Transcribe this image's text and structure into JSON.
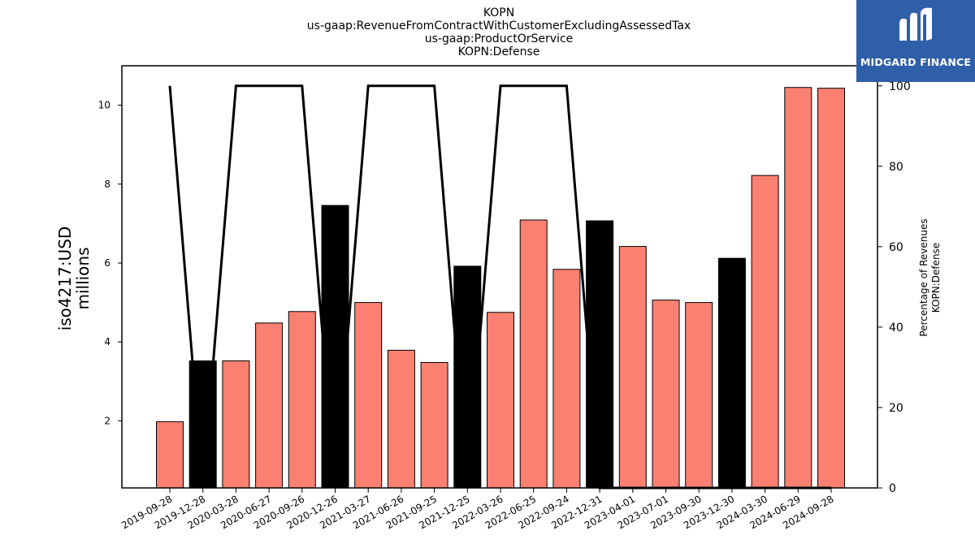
{
  "chart_data": {
    "type": "bar",
    "title_lines": [
      "KOPN",
      "us-gaap:RevenueFromContractWithCustomerExcludingAssessedTax",
      "us-gaap:ProductOrService",
      "KOPN:Defense"
    ],
    "ylabel_lines": [
      "iso4217:USD",
      "millions"
    ],
    "y2label_lines": [
      "Percentage of Revenues",
      "KOPN:Defense"
    ],
    "categories": [
      "2019-09-28",
      "2019-12-28",
      "2020-03-28",
      "2020-06-27",
      "2020-09-26",
      "2020-12-26",
      "2021-03-27",
      "2021-06-26",
      "2021-09-25",
      "2021-12-25",
      "2022-03-26",
      "2022-06-25",
      "2022-09-24",
      "2022-12-31",
      "2023-04-01",
      "2023-07-01",
      "2023-09-30",
      "2023-12-30",
      "2024-03-30",
      "2024-06-29",
      "2024-09-28"
    ],
    "values": [
      1.98,
      3.52,
      3.52,
      4.48,
      4.77,
      7.46,
      5.0,
      3.79,
      3.48,
      5.92,
      4.75,
      7.09,
      5.84,
      7.07,
      6.42,
      5.06,
      5.0,
      6.12,
      8.22,
      10.45,
      10.43
    ],
    "bar_kind": [
      "q",
      "a",
      "q",
      "q",
      "q",
      "a",
      "q",
      "q",
      "q",
      "a",
      "q",
      "q",
      "q",
      "a",
      "q",
      "q",
      "q",
      "a",
      "q",
      "q",
      "q"
    ],
    "percent_line": [
      100,
      0,
      100,
      100,
      100,
      0,
      100,
      100,
      100,
      0,
      100,
      100,
      100,
      0,
      0,
      0,
      0,
      0,
      0,
      0,
      0
    ],
    "yticks": [
      2,
      4,
      6,
      8,
      10
    ],
    "y2ticks": [
      0,
      20,
      40,
      60,
      80,
      100
    ],
    "ylim": [
      0.3,
      11.0
    ],
    "y2lim": [
      0,
      105
    ],
    "colors": {
      "quarter_bar": "#fa8072",
      "annual_bar": "#000000",
      "line": "#000000"
    }
  },
  "logo": {
    "text": "MIDGARD FINANCE",
    "bg": "#2f5fa8"
  }
}
